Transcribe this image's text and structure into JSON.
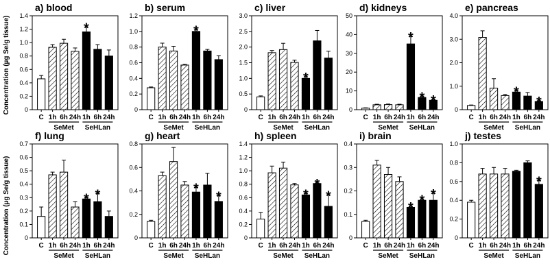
{
  "figure": {
    "y_axis_label": "Concentration (µg Se/g tissue)",
    "star_symbol": "*",
    "colors": {
      "control": "#ffffff",
      "semet": "#ffffff",
      "sehlan": "#000000",
      "stroke": "#000000"
    }
  },
  "chart_data": [
    {
      "type": "bar",
      "title": "a) blood",
      "categories": [
        "C",
        "1h",
        "6h",
        "24h",
        "1h",
        "6h",
        "24h"
      ],
      "groups": [
        {
          "name": "SeMet",
          "indices": [
            1,
            2,
            3
          ]
        },
        {
          "name": "SeHLan",
          "indices": [
            4,
            5,
            6
          ]
        }
      ],
      "values": [
        0.46,
        0.93,
        0.99,
        0.87,
        1.16,
        0.9,
        0.8
      ],
      "errors": [
        0.05,
        0.04,
        0.06,
        0.05,
        0.07,
        0.07,
        0.09
      ],
      "significant": [
        false,
        false,
        false,
        false,
        true,
        false,
        false
      ],
      "ylim": [
        0,
        1.4
      ],
      "yticks": [
        0,
        0.2,
        0.4,
        0.6,
        0.8,
        1.0,
        1.2,
        1.4
      ],
      "ytick_labels": [
        "0",
        "0.2",
        "0.4",
        "0.6",
        "0.8",
        "1.0",
        "1.2",
        "1.4"
      ]
    },
    {
      "type": "bar",
      "title": "b) serum",
      "categories": [
        "C",
        "1h",
        "6h",
        "24h",
        "1h",
        "6h",
        "24h"
      ],
      "groups": [
        {
          "name": "SeMet",
          "indices": [
            1,
            2,
            3
          ]
        },
        {
          "name": "SeHLan",
          "indices": [
            4,
            5,
            6
          ]
        }
      ],
      "values": [
        0.28,
        0.8,
        0.75,
        0.57,
        1.0,
        0.75,
        0.64
      ],
      "errors": [
        0.01,
        0.05,
        0.06,
        0.01,
        0.02,
        0.02,
        0.05
      ],
      "significant": [
        false,
        false,
        false,
        false,
        true,
        false,
        false
      ],
      "ylim": [
        0,
        1.2
      ],
      "yticks": [
        0,
        0.2,
        0.4,
        0.6,
        0.8,
        1.0,
        1.2
      ],
      "ytick_labels": [
        "0",
        "0.2",
        "0.4",
        "0.6",
        "0.8",
        "1.0",
        "1.2"
      ]
    },
    {
      "type": "bar",
      "title": "c) liver",
      "categories": [
        "C",
        "1h",
        "6h",
        "24h",
        "1h",
        "6h",
        "24h"
      ],
      "groups": [
        {
          "name": "SeMet",
          "indices": [
            1,
            2,
            3
          ]
        },
        {
          "name": "SeHLan",
          "indices": [
            4,
            5,
            6
          ]
        }
      ],
      "values": [
        0.41,
        1.82,
        1.92,
        1.51,
        1.0,
        2.2,
        1.65
      ],
      "errors": [
        0.03,
        0.07,
        0.2,
        0.07,
        0.05,
        0.33,
        0.22
      ],
      "significant": [
        false,
        false,
        false,
        false,
        true,
        false,
        false
      ],
      "ylim": [
        0,
        3.0
      ],
      "yticks": [
        0,
        0.5,
        1.0,
        1.5,
        2.0,
        2.5,
        3.0
      ],
      "ytick_labels": [
        "0",
        "0.5",
        "1.0",
        "1.5",
        "2.0",
        "2.5",
        "3.0"
      ]
    },
    {
      "type": "bar",
      "title": "d) kidneys",
      "categories": [
        "C",
        "1h",
        "6h",
        "24h",
        "1h",
        "6h",
        "24h"
      ],
      "groups": [
        {
          "name": "SeMet",
          "indices": [
            1,
            2,
            3
          ]
        },
        {
          "name": "SeHLan",
          "indices": [
            4,
            5,
            6
          ]
        }
      ],
      "values": [
        0.8,
        2.6,
        2.7,
        2.6,
        35.0,
        6.5,
        5.0
      ],
      "errors": [
        0.2,
        0.3,
        0.3,
        0.3,
        4.0,
        0.7,
        0.5
      ],
      "significant": [
        false,
        false,
        false,
        false,
        true,
        true,
        true
      ],
      "ylim": [
        0,
        50
      ],
      "yticks": [
        0,
        10,
        20,
        30,
        40,
        50
      ],
      "ytick_labels": [
        "0",
        "10",
        "20",
        "30",
        "40",
        "50"
      ]
    },
    {
      "type": "bar",
      "title": "e) pancreas",
      "categories": [
        "C",
        "1h",
        "6h",
        "24h",
        "1h",
        "6h",
        "24h"
      ],
      "groups": [
        {
          "name": "SeMet",
          "indices": [
            1,
            2,
            3
          ]
        },
        {
          "name": "SeHLan",
          "indices": [
            4,
            5,
            6
          ]
        }
      ],
      "values": [
        0.18,
        3.08,
        0.92,
        0.6,
        0.75,
        0.58,
        0.35
      ],
      "errors": [
        0.02,
        0.28,
        0.4,
        0.05,
        0.06,
        0.15,
        0.03
      ],
      "significant": [
        false,
        false,
        false,
        false,
        true,
        false,
        true
      ],
      "ylim": [
        0,
        4.0
      ],
      "yticks": [
        0,
        1.0,
        2.0,
        3.0,
        4.0
      ],
      "ytick_labels": [
        "0",
        "1.0",
        "2.0",
        "3.0",
        "4.0"
      ]
    },
    {
      "type": "bar",
      "title": "f) lung",
      "categories": [
        "C",
        "1h",
        "6h",
        "24h",
        "1h",
        "6h",
        "24h"
      ],
      "groups": [
        {
          "name": "SeMet",
          "indices": [
            1,
            2,
            3
          ]
        },
        {
          "name": "SeHLan",
          "indices": [
            4,
            5,
            6
          ]
        }
      ],
      "values": [
        0.16,
        0.47,
        0.49,
        0.23,
        0.29,
        0.27,
        0.16
      ],
      "errors": [
        0.07,
        0.02,
        0.09,
        0.04,
        0.01,
        0.06,
        0.04
      ],
      "significant": [
        false,
        false,
        false,
        false,
        true,
        true,
        false
      ],
      "ylim": [
        0,
        0.7
      ],
      "yticks": [
        0,
        0.1,
        0.2,
        0.3,
        0.4,
        0.5,
        0.6,
        0.7
      ],
      "ytick_labels": [
        "0",
        "0.1",
        "0.2",
        "0.3",
        "0.4",
        "0.5",
        "0.6",
        "0.7"
      ]
    },
    {
      "type": "bar",
      "title": "g) heart",
      "categories": [
        "C",
        "1h",
        "6h",
        "24h",
        "1h",
        "6h",
        "24h"
      ],
      "groups": [
        {
          "name": "SeMet",
          "indices": [
            1,
            2,
            3
          ]
        },
        {
          "name": "SeHLan",
          "indices": [
            4,
            5,
            6
          ]
        }
      ],
      "values": [
        0.14,
        0.53,
        0.65,
        0.45,
        0.39,
        0.45,
        0.31
      ],
      "errors": [
        0.01,
        0.03,
        0.12,
        0.03,
        0.04,
        0.1,
        0.05
      ],
      "significant": [
        false,
        false,
        false,
        false,
        true,
        false,
        true
      ],
      "ylim": [
        0,
        0.8
      ],
      "yticks": [
        0,
        0.2,
        0.4,
        0.6,
        0.8
      ],
      "ytick_labels": [
        "0",
        "0.2",
        "0.4",
        "0.6",
        "0.8"
      ]
    },
    {
      "type": "bar",
      "title": "h) spleen",
      "categories": [
        "C",
        "1h",
        "6h",
        "24h",
        "1h",
        "6h",
        "24h"
      ],
      "groups": [
        {
          "name": "SeMet",
          "indices": [
            1,
            2,
            3
          ]
        },
        {
          "name": "SeHLan",
          "indices": [
            4,
            5,
            6
          ]
        }
      ],
      "values": [
        0.28,
        0.97,
        1.04,
        0.79,
        0.64,
        0.81,
        0.47
      ],
      "errors": [
        0.1,
        0.1,
        0.09,
        0.02,
        0.02,
        0.01,
        0.17
      ],
      "significant": [
        false,
        false,
        false,
        false,
        true,
        true,
        true
      ],
      "ylim": [
        0,
        1.4
      ],
      "yticks": [
        0,
        0.2,
        0.4,
        0.6,
        0.8,
        1.0,
        1.2,
        1.4
      ],
      "ytick_labels": [
        "0",
        "0.2",
        "0.4",
        "0.6",
        "0.8",
        "1.0",
        "1.2",
        "1.4"
      ]
    },
    {
      "type": "bar",
      "title": "i) brain",
      "categories": [
        "C",
        "1h",
        "6h",
        "24h",
        "1h",
        "6h",
        "24h"
      ],
      "groups": [
        {
          "name": "SeMet",
          "indices": [
            1,
            2,
            3
          ]
        },
        {
          "name": "SeHLan",
          "indices": [
            4,
            5,
            6
          ]
        }
      ],
      "values": [
        0.07,
        0.31,
        0.27,
        0.24,
        0.13,
        0.16,
        0.16
      ],
      "errors": [
        0.005,
        0.02,
        0.03,
        0.02,
        0.005,
        0.005,
        0.03
      ],
      "significant": [
        false,
        false,
        false,
        false,
        true,
        true,
        true
      ],
      "ylim": [
        0,
        0.4
      ],
      "yticks": [
        0,
        0.1,
        0.2,
        0.3,
        0.4
      ],
      "ytick_labels": [
        "0",
        "0.1",
        "0.2",
        "0.3",
        "0.4"
      ]
    },
    {
      "type": "bar",
      "title": "j) testes",
      "categories": [
        "C",
        "1h",
        "6h",
        "24h",
        "1h",
        "6h",
        "24h"
      ],
      "groups": [
        {
          "name": "SeMet",
          "indices": [
            1,
            2,
            3
          ]
        },
        {
          "name": "SeHLan",
          "indices": [
            4,
            5,
            6
          ]
        }
      ],
      "values": [
        0.38,
        0.68,
        0.68,
        0.68,
        0.71,
        0.8,
        0.57
      ],
      "errors": [
        0.02,
        0.06,
        0.07,
        0.06,
        0.01,
        0.02,
        0.04
      ],
      "significant": [
        false,
        false,
        false,
        false,
        false,
        false,
        true
      ],
      "ylim": [
        0,
        1.0
      ],
      "yticks": [
        0,
        0.2,
        0.4,
        0.6,
        0.8,
        1.0
      ],
      "ytick_labels": [
        "0",
        "0.2",
        "0.4",
        "0.6",
        "0.8",
        "1.0"
      ]
    }
  ]
}
